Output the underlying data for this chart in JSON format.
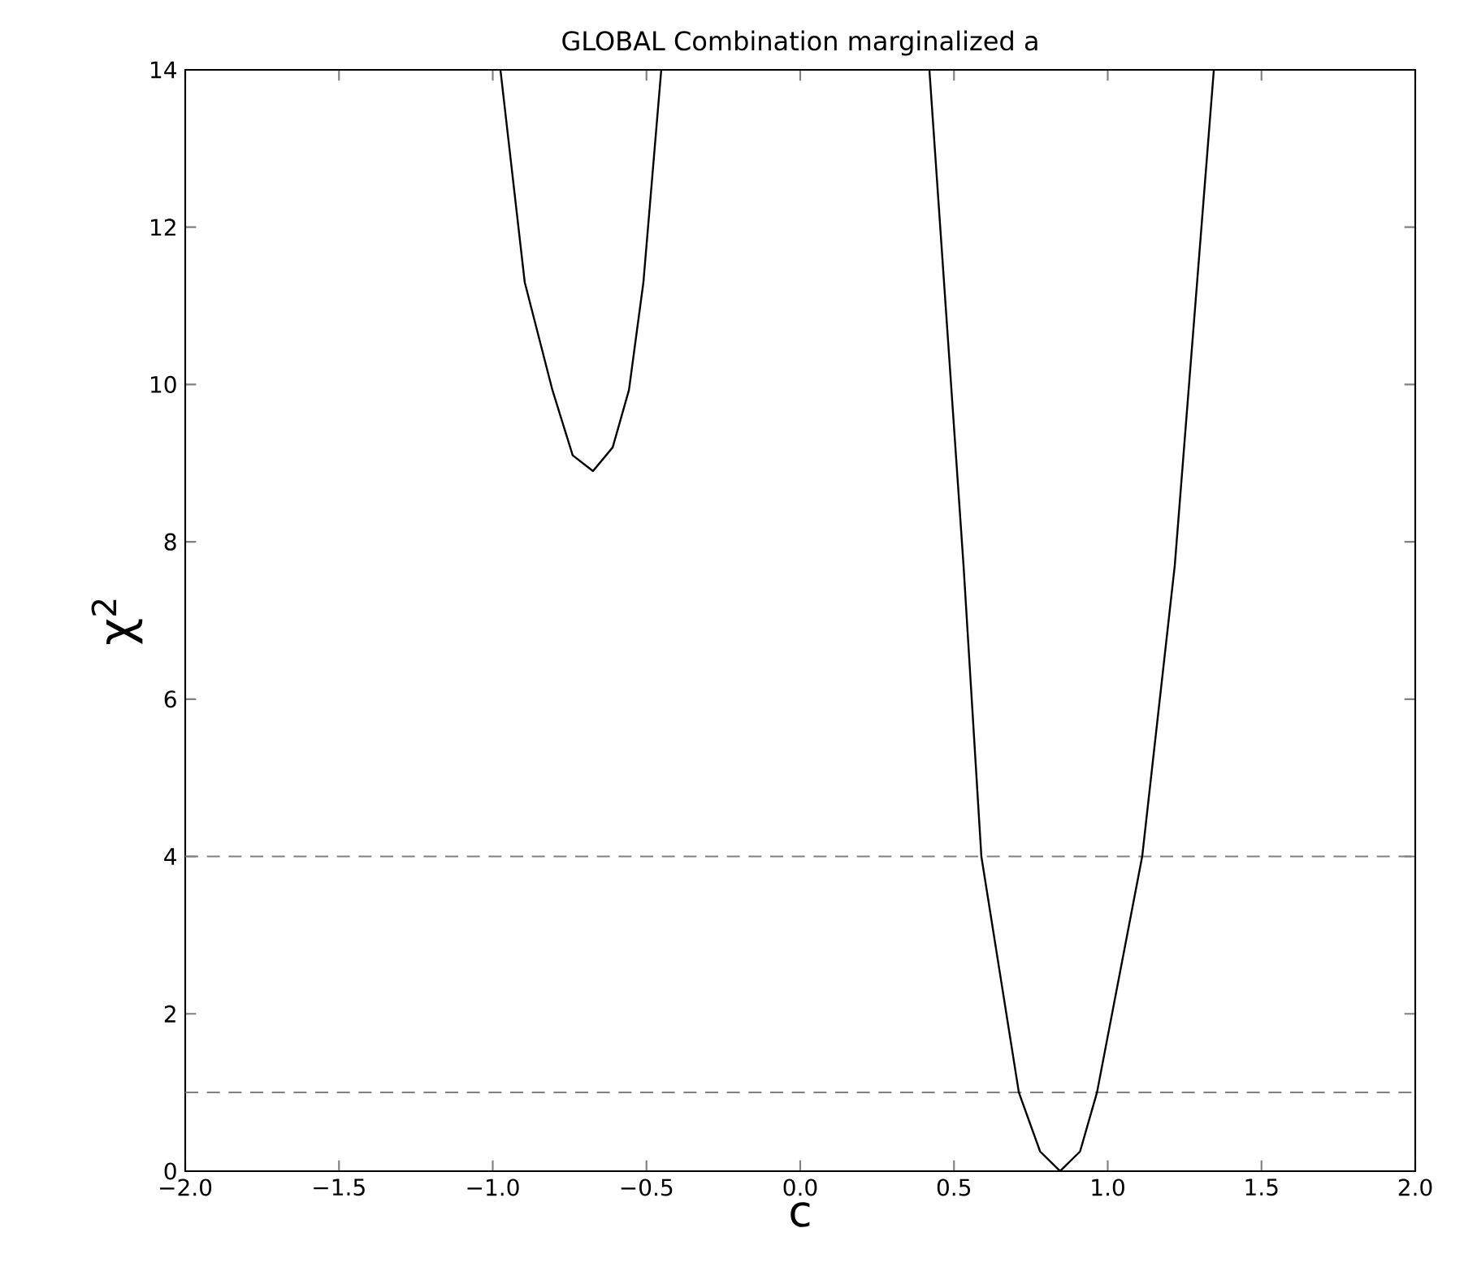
{
  "chart_data": {
    "type": "line",
    "title": "GLOBAL Combination marginalized a",
    "xlabel": "c",
    "ylabel": "χ$^{2}$",
    "xlim": [
      -2,
      2
    ],
    "ylim": [
      0,
      14
    ],
    "xticks": [
      {
        "value": -2,
        "label": "−2.0"
      },
      {
        "value": -1.5,
        "label": "−1.5"
      },
      {
        "value": -1,
        "label": "−1.0"
      },
      {
        "value": -0.5,
        "label": "−0.5"
      },
      {
        "value": 0,
        "label": "0.0"
      },
      {
        "value": 0.5,
        "label": "0.5"
      },
      {
        "value": 1,
        "label": "1.0"
      },
      {
        "value": 1.5,
        "label": "1.5"
      },
      {
        "value": 2,
        "label": "2.0"
      }
    ],
    "yticks": [
      0,
      2,
      4,
      6,
      8,
      10,
      12,
      14
    ],
    "series": [
      {
        "color": "#000000",
        "x": [
          -0.975,
          -0.896,
          -0.806,
          -0.74,
          -0.674,
          -0.61,
          -0.557,
          -0.51,
          -0.452
        ],
        "values": [
          14,
          11.3,
          9.93,
          9.1,
          8.9,
          9.2,
          9.93,
          11.3,
          14
        ]
      },
      {
        "color": "#000000",
        "x": [
          0.42,
          0.531,
          0.589,
          0.711,
          0.78,
          0.845,
          0.91,
          0.965,
          1.112,
          1.218,
          1.345
        ],
        "values": [
          14,
          7.7,
          4,
          1,
          0.25,
          0,
          0.25,
          1,
          4,
          7.7,
          14
        ]
      }
    ],
    "ref_lines": [
      {
        "axis": "y",
        "value": 4,
        "color": "#808080",
        "line_style": "dashed"
      },
      {
        "axis": "y",
        "value": 1,
        "color": "#808080",
        "line_style": "dashed"
      }
    ],
    "line_style": "solid",
    "marker": "none"
  }
}
